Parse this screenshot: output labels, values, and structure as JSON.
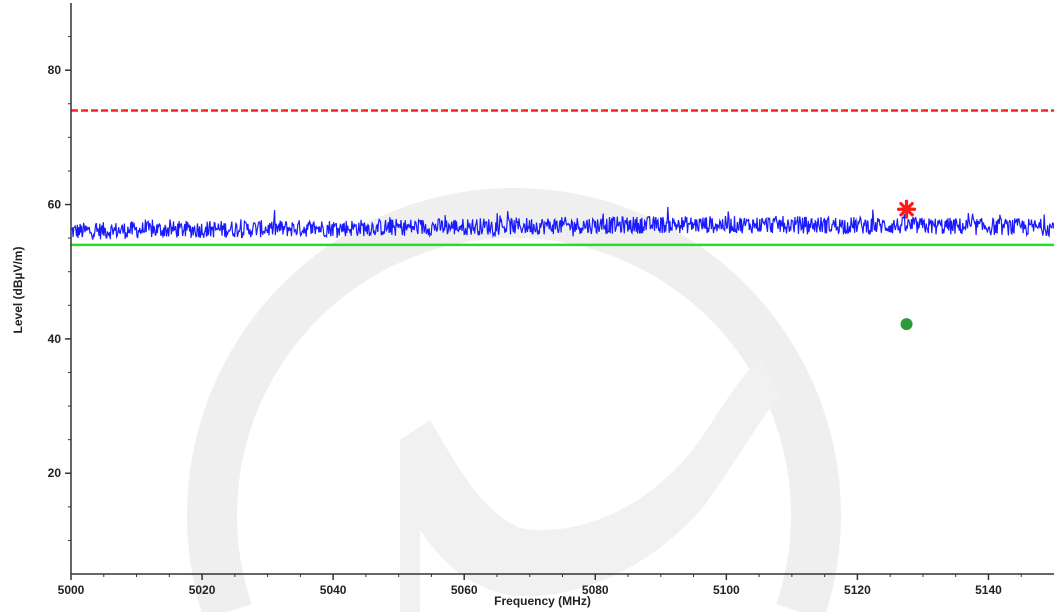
{
  "chart_data": {
    "type": "line",
    "title": "",
    "xlabel": "Frequency (MHz)",
    "ylabel": "Level (dBµV/m)",
    "xlim": [
      5000,
      5150
    ],
    "ylim": [
      5,
      90
    ],
    "x_ticks": [
      5000,
      5020,
      5040,
      5060,
      5080,
      5100,
      5120,
      5140
    ],
    "x_tick_labels": [
      "5000",
      "5020",
      "5040",
      "5060",
      "5080",
      "5100",
      "5120",
      "5140"
    ],
    "y_ticks": [
      20,
      40,
      60,
      80
    ],
    "y_tick_labels": [
      "20",
      "40",
      "60",
      "80"
    ],
    "grid": false,
    "series": [
      {
        "kind": "hline",
        "color": "#ff2020",
        "dashed": true,
        "values": [
          74
        ]
      },
      {
        "kind": "hline",
        "color": "#22e022",
        "dashed": false,
        "values": [
          54
        ]
      },
      {
        "kind": "trace",
        "color": "#1a1aff",
        "x": [
          5000,
          5010,
          5020,
          5030,
          5040,
          5050,
          5060,
          5070,
          5080,
          5090,
          5100,
          5110,
          5120,
          5130,
          5140,
          5150
        ],
        "values": [
          56.0,
          56.2,
          56.3,
          56.4,
          56.5,
          56.6,
          56.7,
          56.8,
          56.9,
          57.0,
          57.0,
          57.0,
          56.9,
          56.8,
          56.7,
          56.6
        ]
      },
      {
        "kind": "marker",
        "symbol": "star",
        "color": "#ff1a1a",
        "x": [
          5127.5
        ],
        "values": [
          59.3
        ]
      },
      {
        "kind": "marker",
        "symbol": "circle",
        "color": "#2e9a3a",
        "x": [
          5127.5
        ],
        "values": [
          42.2
        ]
      }
    ]
  }
}
